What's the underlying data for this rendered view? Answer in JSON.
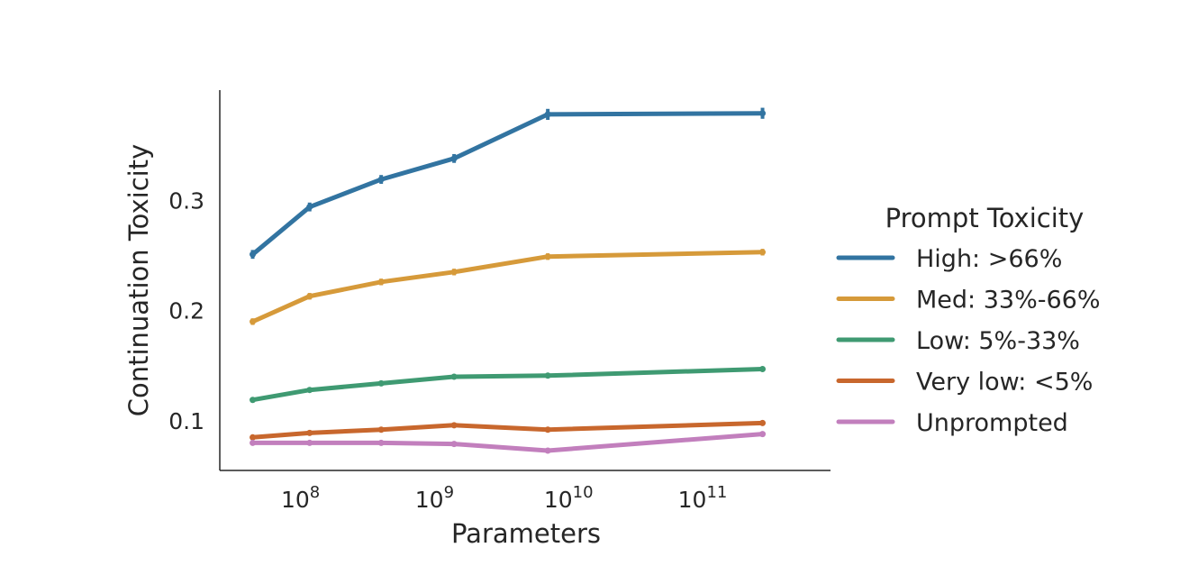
{
  "chart_data": {
    "type": "line",
    "xlabel": "Parameters",
    "ylabel": "Continuation Toxicity",
    "x_scale": "log",
    "xlim": [
      25000000,
      900000000000
    ],
    "ylim": [
      0.055,
      0.4
    ],
    "x": [
      44000000,
      117000000,
      400000000,
      1400000000,
      7000000000,
      280000000000
    ],
    "x_ticks": [
      {
        "value": 100000000,
        "base": "10",
        "exp": "8"
      },
      {
        "value": 1000000000,
        "base": "10",
        "exp": "9"
      },
      {
        "value": 10000000000,
        "base": "10",
        "exp": "10"
      },
      {
        "value": 100000000000,
        "base": "10",
        "exp": "11"
      }
    ],
    "y_ticks": [
      {
        "value": 0.1,
        "label": "0.1"
      },
      {
        "value": 0.2,
        "label": "0.2"
      },
      {
        "value": 0.3,
        "label": "0.3"
      }
    ],
    "legend": {
      "title": "Prompt Toxicity",
      "position": "right"
    },
    "grid": false,
    "series": [
      {
        "name": "High: >66%",
        "color": "#3274a1",
        "values": [
          0.251,
          0.294,
          0.319,
          0.338,
          0.378,
          0.379
        ],
        "err": [
          0.004,
          0.004,
          0.004,
          0.004,
          0.005,
          0.005
        ]
      },
      {
        "name": "Med: 33%-66%",
        "color": "#d69a3a",
        "values": [
          0.19,
          0.213,
          0.226,
          0.235,
          0.249,
          0.253
        ],
        "err": [
          0.003,
          0.003,
          0.003,
          0.003,
          0.003,
          0.003
        ]
      },
      {
        "name": "Low: 5%-33%",
        "color": "#3f9a72",
        "values": [
          0.119,
          0.128,
          0.134,
          0.14,
          0.141,
          0.147
        ],
        "err": [
          0.002,
          0.002,
          0.002,
          0.002,
          0.002,
          0.002
        ]
      },
      {
        "name": "Very low: <5%",
        "color": "#c8672d",
        "values": [
          0.085,
          0.089,
          0.092,
          0.096,
          0.092,
          0.098
        ],
        "err": [
          0.002,
          0.002,
          0.002,
          0.002,
          0.002,
          0.002
        ]
      },
      {
        "name": "Unprompted",
        "color": "#c27fbd",
        "values": [
          0.08,
          0.08,
          0.08,
          0.079,
          0.073,
          0.088
        ],
        "err": [
          0.002,
          0.002,
          0.002,
          0.002,
          0.002,
          0.002
        ]
      }
    ]
  }
}
